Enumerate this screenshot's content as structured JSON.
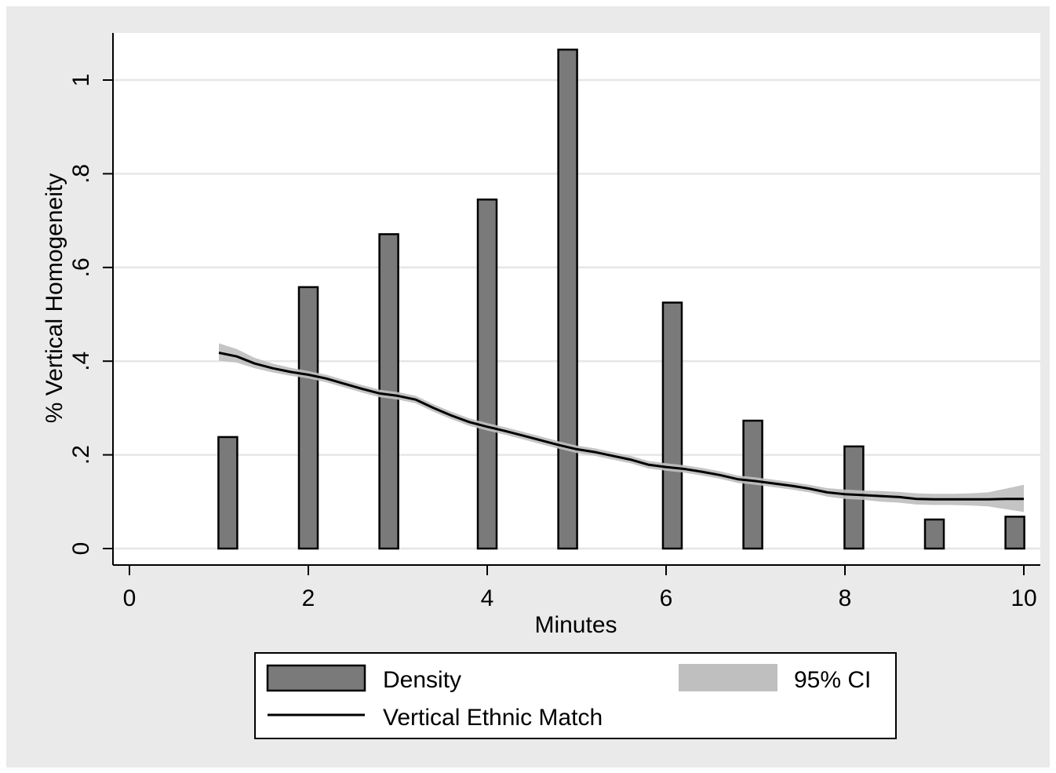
{
  "chart_data": {
    "type": "bar",
    "title": "",
    "xlabel": "Minutes",
    "ylabel": "% Vertical Homogeneity",
    "xlim": [
      0,
      10
    ],
    "ylim": [
      0,
      1.1
    ],
    "x_ticks": [
      0,
      2,
      4,
      6,
      8,
      10
    ],
    "x_tick_labels": [
      "0",
      "2",
      "4",
      "6",
      "8",
      "10"
    ],
    "y_ticks": [
      0,
      0.2,
      0.4,
      0.6,
      0.8,
      1
    ],
    "y_tick_labels": [
      "0",
      ".2",
      ".4",
      ".6",
      ".8",
      "1"
    ],
    "grid": true,
    "legend_position": "bottom",
    "series": [
      {
        "name": "Density",
        "type": "bar",
        "color": "#7a7a7a",
        "x": [
          1.1,
          2.0,
          2.9,
          4.0,
          4.9,
          6.07,
          6.97,
          8.1,
          9.0,
          9.9
        ],
        "values": [
          0.238,
          0.558,
          0.671,
          0.745,
          1.065,
          0.525,
          0.273,
          0.218,
          0.062,
          0.068
        ]
      },
      {
        "name": "Vertical Ethnic Match",
        "type": "line",
        "color": "#000000",
        "x": [
          1.0,
          1.2,
          1.4,
          1.6,
          1.8,
          2.0,
          2.2,
          2.4,
          2.6,
          2.8,
          3.0,
          3.2,
          3.4,
          3.6,
          3.8,
          4.0,
          4.2,
          4.4,
          4.6,
          4.8,
          5.0,
          5.2,
          5.4,
          5.6,
          5.8,
          6.0,
          6.2,
          6.4,
          6.6,
          6.8,
          7.0,
          7.2,
          7.4,
          7.6,
          7.8,
          8.0,
          8.2,
          8.4,
          8.6,
          8.8,
          9.0,
          9.2,
          9.4,
          9.6,
          9.8,
          10.0
        ],
        "values": [
          0.418,
          0.41,
          0.395,
          0.385,
          0.377,
          0.371,
          0.363,
          0.352,
          0.341,
          0.331,
          0.326,
          0.318,
          0.3,
          0.284,
          0.27,
          0.26,
          0.251,
          0.241,
          0.231,
          0.221,
          0.212,
          0.206,
          0.198,
          0.19,
          0.179,
          0.174,
          0.17,
          0.164,
          0.157,
          0.148,
          0.144,
          0.139,
          0.134,
          0.128,
          0.12,
          0.116,
          0.114,
          0.112,
          0.11,
          0.106,
          0.105,
          0.105,
          0.105,
          0.105,
          0.106,
          0.106
        ]
      },
      {
        "name": "95% CI",
        "type": "area",
        "color": "#bfbfbf",
        "x": [
          1.0,
          1.2,
          1.4,
          1.6,
          1.8,
          2.0,
          2.2,
          2.4,
          2.6,
          2.8,
          3.0,
          3.2,
          3.4,
          3.6,
          3.8,
          4.0,
          4.2,
          4.4,
          4.6,
          4.8,
          5.0,
          5.2,
          5.4,
          5.6,
          5.8,
          6.0,
          6.2,
          6.4,
          6.6,
          6.8,
          7.0,
          7.2,
          7.4,
          7.6,
          7.8,
          8.0,
          8.2,
          8.4,
          8.6,
          8.8,
          9.0,
          9.2,
          9.4,
          9.6,
          9.8,
          10.0
        ],
        "lower": [
          0.401,
          0.397,
          0.385,
          0.376,
          0.369,
          0.363,
          0.355,
          0.344,
          0.333,
          0.323,
          0.318,
          0.31,
          0.292,
          0.276,
          0.262,
          0.252,
          0.243,
          0.233,
          0.223,
          0.213,
          0.204,
          0.198,
          0.19,
          0.182,
          0.171,
          0.166,
          0.162,
          0.156,
          0.149,
          0.14,
          0.136,
          0.131,
          0.126,
          0.12,
          0.111,
          0.106,
          0.104,
          0.1,
          0.098,
          0.094,
          0.093,
          0.093,
          0.092,
          0.09,
          0.084,
          0.078
        ],
        "upper": [
          0.438,
          0.426,
          0.407,
          0.395,
          0.386,
          0.379,
          0.371,
          0.36,
          0.349,
          0.339,
          0.334,
          0.326,
          0.308,
          0.292,
          0.278,
          0.268,
          0.259,
          0.249,
          0.239,
          0.229,
          0.22,
          0.214,
          0.206,
          0.198,
          0.187,
          0.182,
          0.178,
          0.172,
          0.165,
          0.156,
          0.152,
          0.147,
          0.142,
          0.136,
          0.129,
          0.126,
          0.124,
          0.123,
          0.121,
          0.118,
          0.117,
          0.117,
          0.118,
          0.12,
          0.128,
          0.136
        ]
      }
    ],
    "legend": {
      "entries": [
        {
          "label": "Density",
          "kind": "bar"
        },
        {
          "label": "95% CI",
          "kind": "area"
        },
        {
          "label": "Vertical Ethnic Match",
          "kind": "line"
        }
      ]
    }
  }
}
